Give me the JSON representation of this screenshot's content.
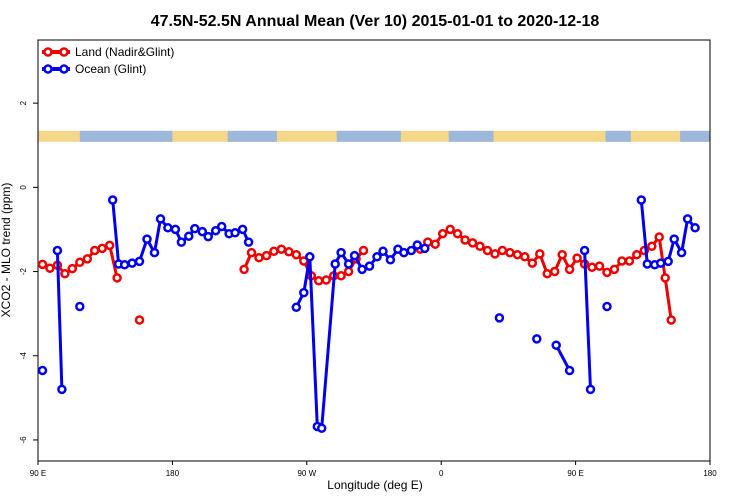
{
  "chart_data": {
    "type": "line",
    "title": "47.5N-52.5N Annual Mean (Ver 10)   2015-01-01 to 2020-12-18",
    "xlabel": "Longitude (deg E)",
    "ylabel": "XCO2 - MLO trend (ppm)",
    "x_ticks": [
      {
        "value": 90,
        "label": "90 E"
      },
      {
        "value": 180,
        "label": "180"
      },
      {
        "value": 270,
        "label": "90 W"
      },
      {
        "value": 360,
        "label": "0"
      },
      {
        "value": 450,
        "label": "90 E"
      },
      {
        "value": 540,
        "label": "180"
      }
    ],
    "y_ticks": [
      {
        "value": -6,
        "label": "-6"
      },
      {
        "value": -4,
        "label": "-4"
      },
      {
        "value": -2,
        "label": "-2"
      },
      {
        "value": 0,
        "label": "0"
      },
      {
        "value": 2,
        "label": "2"
      }
    ],
    "xlim": [
      90,
      540
    ],
    "ylim": [
      -6.5,
      3.5
    ],
    "grid": false,
    "legend_position": "top-left",
    "land_ocean_strip": {
      "y": 1.2,
      "land_color": "#f5d78a",
      "ocean_color": "#9db8db"
    },
    "series": [
      {
        "name": "Land (Nadir&Glint)",
        "color": "#ee0000",
        "points": [
          [
            93,
            -1.83
          ],
          [
            98,
            -1.92
          ],
          [
            103,
            -1.85
          ],
          [
            108,
            -2.05
          ],
          [
            113,
            -1.93
          ],
          [
            118,
            -1.78
          ],
          [
            123,
            -1.7
          ],
          [
            128,
            -1.5
          ],
          [
            133,
            -1.45
          ],
          [
            138,
            -1.38
          ],
          [
            143,
            -2.15
          ],
          [
            158,
            -3.15
          ],
          [
            228,
            -1.95
          ],
          [
            233,
            -1.55
          ],
          [
            238,
            -1.67
          ],
          [
            243,
            -1.62
          ],
          [
            248,
            -1.52
          ],
          [
            253,
            -1.47
          ],
          [
            258,
            -1.53
          ],
          [
            263,
            -1.6
          ],
          [
            268,
            -1.75
          ],
          [
            273,
            -2.1
          ],
          [
            278,
            -2.22
          ],
          [
            283,
            -2.2
          ],
          [
            288,
            -2.1
          ],
          [
            293,
            -2.1
          ],
          [
            298,
            -2.0
          ],
          [
            303,
            -1.7
          ],
          [
            308,
            -1.5
          ],
          [
            346,
            -1.47
          ],
          [
            351,
            -1.3
          ],
          [
            356,
            -1.35
          ],
          [
            361,
            -1.1
          ],
          [
            366,
            -1.0
          ],
          [
            371,
            -1.1
          ],
          [
            376,
            -1.25
          ],
          [
            381,
            -1.32
          ],
          [
            386,
            -1.4
          ],
          [
            391,
            -1.5
          ],
          [
            396,
            -1.58
          ],
          [
            401,
            -1.5
          ],
          [
            406,
            -1.55
          ],
          [
            411,
            -1.6
          ],
          [
            416,
            -1.65
          ],
          [
            421,
            -1.8
          ],
          [
            426,
            -1.58
          ],
          [
            431,
            -2.05
          ],
          [
            436,
            -2.0
          ],
          [
            441,
            -1.6
          ],
          [
            446,
            -1.95
          ],
          [
            451,
            -1.68
          ],
          [
            456,
            -1.82
          ],
          [
            461,
            -1.9
          ],
          [
            466,
            -1.87
          ],
          [
            471,
            -2.02
          ],
          [
            476,
            -1.95
          ],
          [
            481,
            -1.75
          ],
          [
            486,
            -1.75
          ],
          [
            491,
            -1.6
          ],
          [
            496,
            -1.5
          ],
          [
            501,
            -1.4
          ],
          [
            506,
            -1.18
          ],
          [
            510,
            -2.15
          ],
          [
            514,
            -3.15
          ]
        ]
      },
      {
        "name": "Ocean (Glint)",
        "color": "#0000ee",
        "points": [
          [
            93,
            -4.35
          ],
          [
            103,
            -1.5
          ],
          [
            106,
            -4.8
          ],
          [
            118,
            -2.83
          ],
          [
            140,
            -0.3
          ],
          [
            144,
            -1.82
          ],
          [
            148,
            -1.84
          ],
          [
            153,
            -1.8
          ],
          [
            158,
            -1.76
          ],
          [
            163,
            -1.23
          ],
          [
            168,
            -1.55
          ],
          [
            172,
            -0.75
          ],
          [
            177,
            -0.96
          ],
          [
            182,
            -1.0
          ],
          [
            186,
            -1.3
          ],
          [
            191,
            -1.16
          ],
          [
            195,
            -0.98
          ],
          [
            200,
            -1.05
          ],
          [
            204,
            -1.17
          ],
          [
            209,
            -1.03
          ],
          [
            213,
            -0.93
          ],
          [
            218,
            -1.1
          ],
          [
            222,
            -1.08
          ],
          [
            227,
            -1.0
          ],
          [
            231,
            -1.3
          ],
          [
            263,
            -2.85
          ],
          [
            268,
            -2.5
          ],
          [
            272,
            -1.65
          ],
          [
            277,
            -5.68
          ],
          [
            280,
            -5.72
          ],
          [
            289,
            -1.82
          ],
          [
            293,
            -1.55
          ],
          [
            298,
            -1.82
          ],
          [
            302,
            -1.62
          ],
          [
            307,
            -1.95
          ],
          [
            312,
            -1.87
          ],
          [
            317,
            -1.65
          ],
          [
            321,
            -1.52
          ],
          [
            326,
            -1.72
          ],
          [
            331,
            -1.47
          ],
          [
            335,
            -1.55
          ],
          [
            340,
            -1.5
          ],
          [
            344,
            -1.37
          ],
          [
            349,
            -1.45
          ],
          [
            399,
            -3.1
          ],
          [
            424,
            -3.6
          ],
          [
            437,
            -3.75
          ],
          [
            446,
            -4.35
          ],
          [
            456,
            -1.5
          ],
          [
            460,
            -4.8
          ],
          [
            471,
            -2.83
          ],
          [
            494,
            -0.3
          ],
          [
            498,
            -1.82
          ],
          [
            503,
            -1.84
          ],
          [
            507,
            -1.8
          ],
          [
            512,
            -1.76
          ],
          [
            516,
            -1.23
          ],
          [
            521,
            -1.55
          ],
          [
            525,
            -0.75
          ],
          [
            530,
            -0.96
          ]
        ]
      }
    ]
  }
}
